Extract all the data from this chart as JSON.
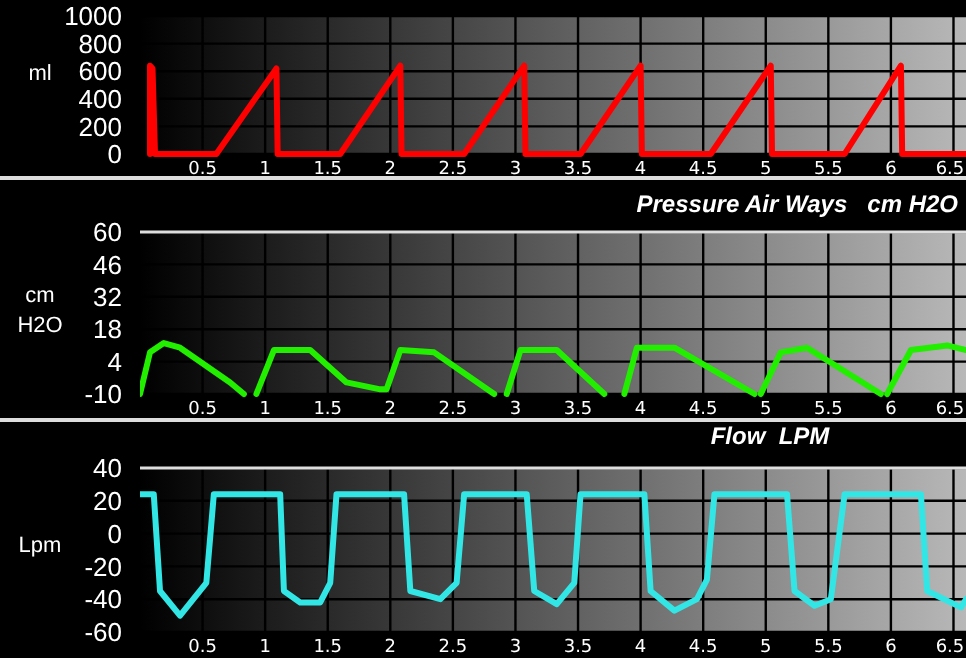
{
  "chart_data": [
    {
      "type": "line",
      "ylabel": "ml",
      "xlim": [
        0,
        6.6
      ],
      "xticks": [
        0.5,
        1,
        1.5,
        2,
        2.5,
        3,
        3.5,
        4,
        4.5,
        5,
        5.5,
        6,
        6.5
      ],
      "ylim": [
        0,
        1000
      ],
      "yticks": [
        0,
        200,
        400,
        600,
        800,
        1000
      ],
      "grid": true,
      "series": [
        {
          "color": "#ff0000",
          "x": [
            0.08,
            0.08,
            0.1,
            0.12,
            0.61,
            1.09,
            1.1,
            1.6,
            2.08,
            2.09,
            2.59,
            3.07,
            3.08,
            3.52,
            4.0,
            4.01,
            4.56,
            5.04,
            5.05,
            5.63,
            6.08,
            6.09,
            6.6
          ],
          "values": [
            0,
            640,
            620,
            0,
            0,
            620,
            0,
            0,
            640,
            0,
            0,
            640,
            0,
            0,
            640,
            0,
            0,
            640,
            0,
            0,
            640,
            0,
            0
          ]
        }
      ]
    },
    {
      "type": "line",
      "title": "Pressure Air Ways   cm H2O",
      "ylabel": "cm H2O",
      "xlim": [
        0,
        6.6
      ],
      "xticks": [
        0.5,
        1,
        1.5,
        2,
        2.5,
        3,
        3.5,
        4,
        4.5,
        5,
        5.5,
        6,
        6.5
      ],
      "ylim": [
        -10,
        60
      ],
      "yticks": [
        60,
        46,
        32,
        18,
        4,
        -10
      ],
      "grid": true,
      "series": [
        {
          "color": "#22ee00",
          "x": [
            0.0,
            0.08,
            0.19,
            0.32,
            0.72,
            0.83,
            null,
            0.93,
            1.07,
            1.36,
            1.65,
            1.92,
            1.97,
            2.08,
            2.35,
            2.83,
            null,
            2.93,
            3.04,
            3.33,
            3.71,
            null,
            3.87,
            3.97,
            4.27,
            4.91,
            null,
            4.96,
            5.12,
            5.33,
            5.92,
            null,
            5.97,
            6.16,
            6.45,
            6.6
          ],
          "values": [
            -10,
            8,
            12,
            10,
            -5,
            -10,
            null,
            -10,
            9,
            9,
            -5,
            -8,
            -8,
            9,
            8,
            -10,
            null,
            -10,
            9,
            9,
            -10,
            null,
            -10,
            10,
            10,
            -10,
            null,
            -10,
            8,
            10,
            -10,
            null,
            -10,
            9,
            11,
            9
          ]
        }
      ]
    },
    {
      "type": "line",
      "title": "Flow  LPM",
      "ylabel": "Lpm",
      "xlim": [
        0,
        6.6
      ],
      "xticks": [
        0.5,
        1,
        1.5,
        2,
        2.5,
        3,
        3.5,
        4,
        4.5,
        5,
        5.5,
        6,
        6.5
      ],
      "ylim": [
        -60,
        40
      ],
      "yticks": [
        40,
        20,
        0,
        -20,
        -40,
        -60
      ],
      "grid": true,
      "series": [
        {
          "color": "#33e6e6",
          "x": [
            0,
            0.11,
            0.16,
            0.32,
            0.53,
            0.59,
            1.12,
            1.15,
            1.28,
            1.44,
            1.52,
            1.57,
            2.11,
            2.16,
            2.4,
            2.53,
            2.59,
            3.09,
            3.15,
            3.33,
            3.47,
            3.52,
            4.03,
            4.08,
            4.27,
            4.45,
            4.53,
            4.59,
            5.17,
            5.23,
            5.39,
            5.52,
            5.63,
            6.24,
            6.29,
            6.56,
            6.6
          ],
          "values": [
            24,
            24,
            -35,
            -50,
            -30,
            24,
            24,
            -35,
            -42,
            -42,
            -30,
            24,
            24,
            -35,
            -40,
            -30,
            24,
            24,
            -35,
            -43,
            -30,
            24,
            24,
            -35,
            -47,
            -40,
            -28,
            24,
            24,
            -35,
            -44,
            -40,
            24,
            24,
            -35,
            -45,
            -40
          ]
        }
      ]
    }
  ]
}
